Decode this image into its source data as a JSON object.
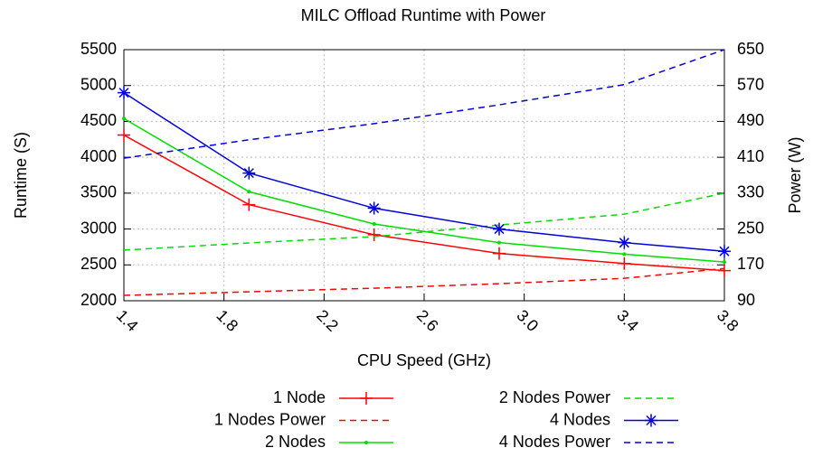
{
  "chart_data": {
    "type": "line",
    "title": "MILC Offload Runtime with Power",
    "xlabel": "CPU Speed (GHz)",
    "ylabel": "Runtime (S)",
    "y2label": "Power (W)",
    "x": [
      1.4,
      1.9,
      2.4,
      2.9,
      3.4,
      3.8
    ],
    "xlim": [
      1.4,
      3.8
    ],
    "xticks": [
      1.4,
      1.8,
      2.2,
      2.6,
      {
        "value": 3,
        "label": "3.0"
      },
      3.4,
      3.8
    ],
    "ylim": [
      2000,
      5500
    ],
    "yticks": [
      2000,
      2500,
      3000,
      3500,
      4000,
      4500,
      5000,
      5500
    ],
    "y2lim": [
      90,
      650
    ],
    "y2ticks": [
      90,
      170,
      250,
      330,
      410,
      490,
      570,
      650
    ],
    "grid": true,
    "legend": "bottom",
    "series": [
      {
        "name": "1 Node",
        "color": "#ff0000",
        "marker": "plus",
        "dashed": false,
        "values": [
          4310,
          3340,
          2920,
          2660,
          2520,
          2420
        ]
      },
      {
        "name": "1 Nodes Power",
        "color": "#ff0000",
        "marker": "none",
        "dashed": true,
        "axis": "y2",
        "values": [
          102,
          110,
          118,
          128,
          140,
          162
        ]
      },
      {
        "name": "2 Nodes",
        "color": "#00dd00",
        "marker": "dot",
        "dashed": false,
        "values": [
          4540,
          3520,
          3070,
          2810,
          2650,
          2540
        ]
      },
      {
        "name": "2 Nodes Power",
        "color": "#00dd00",
        "marker": "none",
        "dashed": true,
        "axis": "y2",
        "values": [
          203,
          219,
          233,
          259,
          283,
          330
        ]
      },
      {
        "name": "4 Nodes",
        "color": "#0000dd",
        "marker": "star",
        "dashed": false,
        "values": [
          4900,
          3780,
          3290,
          3000,
          2810,
          2690
        ]
      },
      {
        "name": "4 Nodes Power",
        "color": "#0000dd",
        "marker": "none",
        "dashed": true,
        "axis": "y2",
        "values": [
          408,
          449,
          485,
          527,
          572,
          650
        ]
      }
    ]
  }
}
